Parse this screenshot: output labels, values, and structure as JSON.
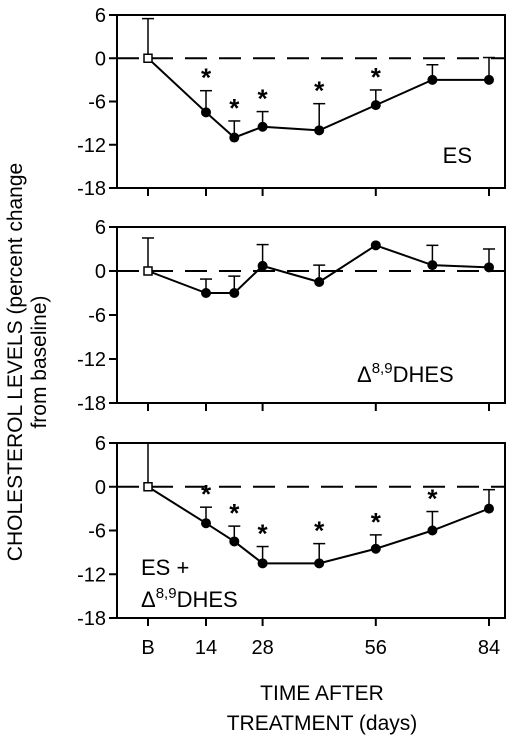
{
  "figure": {
    "ylabel_line1": "CHOLESTEROL LEVELS (percent change",
    "ylabel_line2": "from baseline)",
    "xlabel_line1": "TIME AFTER",
    "xlabel_line2": "TREATMENT (days)",
    "significance_marker": "*"
  },
  "chart_data": [
    {
      "type": "line",
      "panel_label": "ES",
      "x": [
        "B",
        14,
        21,
        28,
        42,
        56,
        70,
        84
      ],
      "y": [
        0,
        -7.5,
        -11,
        -9.5,
        -10,
        -6.5,
        -3,
        -3
      ],
      "error_up": [
        5.5,
        3,
        2.3,
        2.1,
        3.7,
        2.1,
        2.1,
        3.1
      ],
      "significant": [
        false,
        true,
        true,
        true,
        true,
        true,
        false,
        false
      ],
      "xticks": [
        "B",
        "14",
        "28",
        "56",
        "84"
      ],
      "yticks": [
        6,
        0,
        -6,
        -12,
        -18
      ],
      "ylim": [
        -18,
        6
      ],
      "baseline": 0
    },
    {
      "type": "line",
      "panel_label": "Δ8,9DHES",
      "panel_label_parts": {
        "prefix": "Δ",
        "superscript": "8,9",
        "suffix": "DHES"
      },
      "x": [
        "B",
        14,
        21,
        28,
        42,
        56,
        70,
        84
      ],
      "y": [
        0,
        -3,
        -3,
        0.7,
        -1.5,
        3.5,
        0.8,
        0.5
      ],
      "error_up": [
        4.5,
        1.9,
        2.3,
        2.9,
        2.3,
        0,
        2.7,
        2.5
      ],
      "significant": [
        false,
        false,
        false,
        false,
        false,
        false,
        false,
        false
      ],
      "xticks": [
        "B",
        "14",
        "28",
        "56",
        "84"
      ],
      "yticks": [
        6,
        0,
        -6,
        -12,
        -18
      ],
      "ylim": [
        -18,
        6
      ],
      "baseline": 0
    },
    {
      "type": "line",
      "panel_label": "ES + Δ8,9DHES",
      "panel_label_parts": {
        "line1": "ES +",
        "prefix": "Δ",
        "superscript": "8,9",
        "suffix": "DHES"
      },
      "x": [
        "B",
        14,
        21,
        28,
        42,
        56,
        70,
        84
      ],
      "y": [
        0,
        -5,
        -7.5,
        -10.5,
        -10.5,
        -8.5,
        -6,
        -3
      ],
      "error_up": [
        6,
        2.2,
        2.1,
        2.3,
        2.7,
        1.9,
        2.6,
        2.6
      ],
      "significant": [
        false,
        true,
        true,
        true,
        true,
        true,
        true,
        false
      ],
      "xticks": [
        "B",
        "14",
        "28",
        "56",
        "84"
      ],
      "yticks": [
        6,
        0,
        -6,
        -12,
        -18
      ],
      "ylim": [
        -18,
        6
      ],
      "baseline": 0
    }
  ]
}
